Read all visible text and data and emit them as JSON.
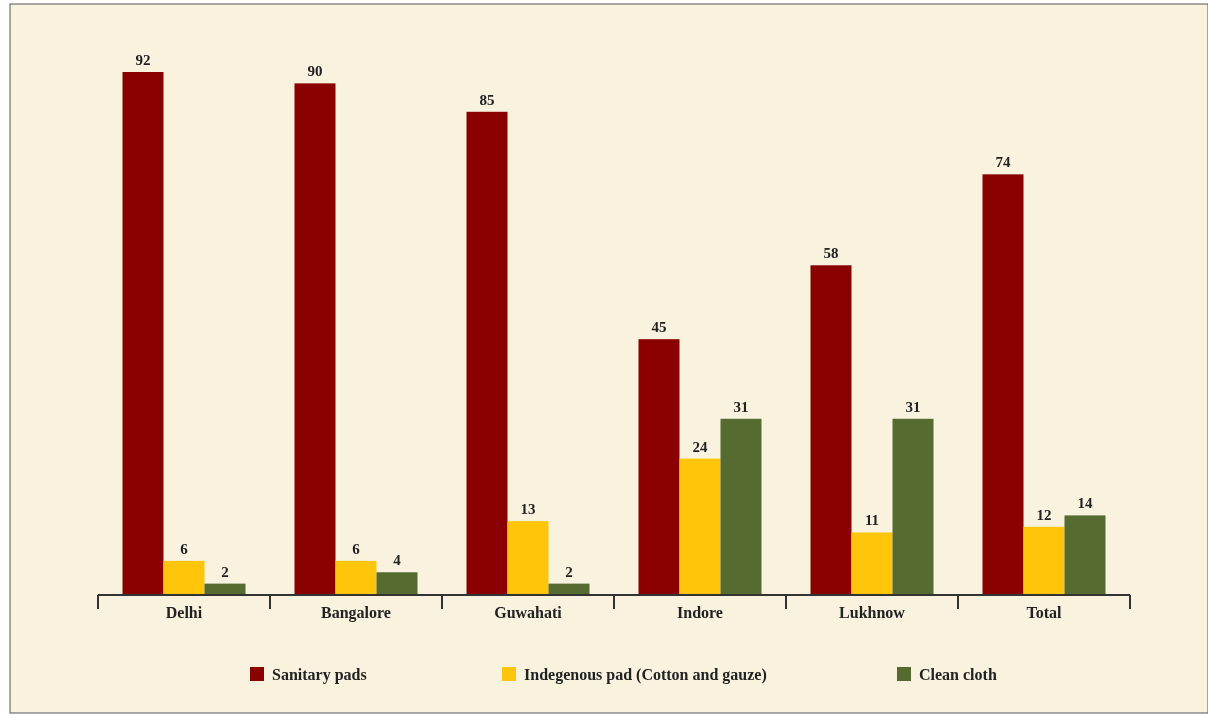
{
  "chart_data": {
    "type": "bar",
    "categories": [
      "Delhi",
      "Bangalore",
      "Guwahati",
      "Indore",
      "Lukhnow",
      "Total"
    ],
    "series": [
      {
        "name": "Sanitary pads",
        "color": "#8b0000",
        "values": [
          92,
          90,
          85,
          45,
          58,
          74
        ]
      },
      {
        "name": "Indegenous pad (Cotton and gauze)",
        "color": "#ffc50a",
        "values": [
          6,
          6,
          13,
          24,
          11,
          12
        ]
      },
      {
        "name": "Clean cloth",
        "color": "#556b2f",
        "values": [
          2,
          4,
          2,
          31,
          31,
          14
        ]
      }
    ],
    "data_labels": true,
    "legend": "bottom"
  }
}
